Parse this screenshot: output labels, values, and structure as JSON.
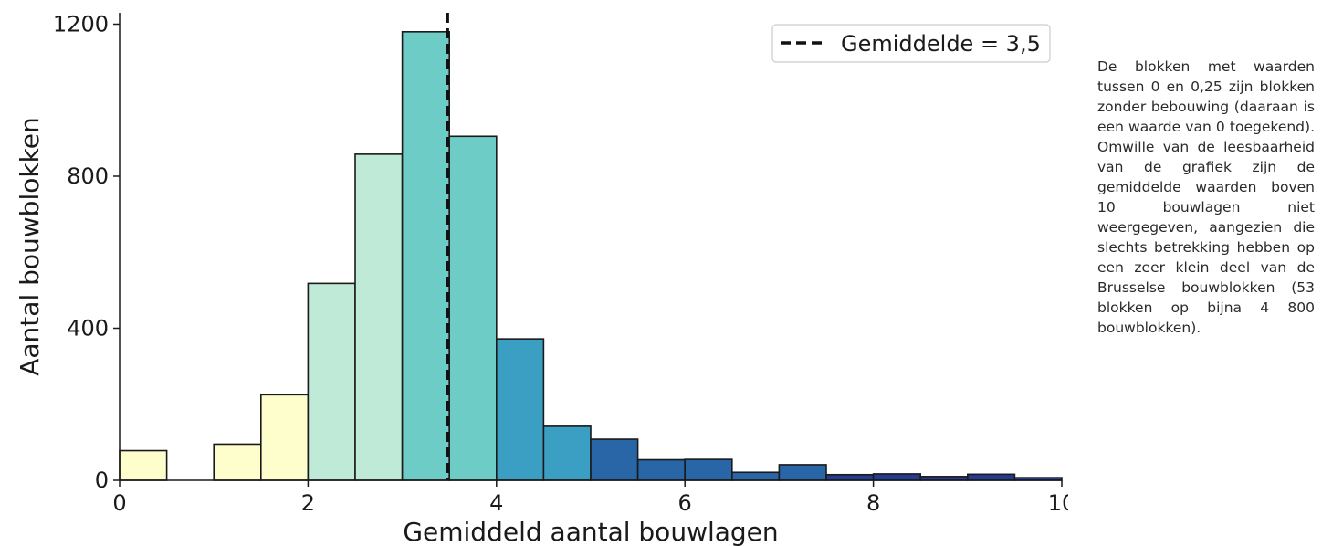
{
  "chart_data": {
    "type": "bar",
    "title": "",
    "xlabel": "Gemiddeld aantal bouwlagen",
    "ylabel": "Aantal bouwblokken",
    "xlim": [
      0,
      10
    ],
    "ylim": [
      0,
      1230
    ],
    "x_ticks": [
      "0",
      "2",
      "4",
      "6",
      "8",
      "10"
    ],
    "y_ticks": [
      "0",
      "400",
      "800",
      "1200"
    ],
    "bin_width": 0.5,
    "bins": [
      {
        "x0": 0.0,
        "x1": 0.5,
        "value": 78,
        "color": "#fefecc"
      },
      {
        "x0": 0.5,
        "x1": 1.0,
        "value": 0,
        "color": "#fefecc"
      },
      {
        "x0": 1.0,
        "x1": 1.5,
        "value": 95,
        "color": "#fefecc"
      },
      {
        "x0": 1.5,
        "x1": 2.0,
        "value": 225,
        "color": "#fefecc"
      },
      {
        "x0": 2.0,
        "x1": 2.5,
        "value": 518,
        "color": "#bfead8"
      },
      {
        "x0": 2.5,
        "x1": 3.0,
        "value": 858,
        "color": "#bfead8"
      },
      {
        "x0": 3.0,
        "x1": 3.5,
        "value": 1180,
        "color": "#6dcdc6"
      },
      {
        "x0": 3.5,
        "x1": 4.0,
        "value": 905,
        "color": "#6dcdc6"
      },
      {
        "x0": 4.0,
        "x1": 4.5,
        "value": 372,
        "color": "#3a9fc2"
      },
      {
        "x0": 4.5,
        "x1": 5.0,
        "value": 142,
        "color": "#3a9fc2"
      },
      {
        "x0": 5.0,
        "x1": 5.5,
        "value": 108,
        "color": "#2966a8"
      },
      {
        "x0": 5.5,
        "x1": 6.0,
        "value": 54,
        "color": "#2966a8"
      },
      {
        "x0": 6.0,
        "x1": 6.5,
        "value": 55,
        "color": "#2966a8"
      },
      {
        "x0": 6.5,
        "x1": 7.0,
        "value": 21,
        "color": "#2966a8"
      },
      {
        "x0": 7.0,
        "x1": 7.5,
        "value": 41,
        "color": "#2966a8"
      },
      {
        "x0": 7.5,
        "x1": 8.0,
        "value": 15,
        "color": "#253a91"
      },
      {
        "x0": 8.0,
        "x1": 8.5,
        "value": 17,
        "color": "#253a91"
      },
      {
        "x0": 8.5,
        "x1": 9.0,
        "value": 10,
        "color": "#253a91"
      },
      {
        "x0": 9.0,
        "x1": 9.5,
        "value": 16,
        "color": "#253a91"
      },
      {
        "x0": 9.5,
        "x1": 10.0,
        "value": 7,
        "color": "#253a91"
      }
    ],
    "mean_line": {
      "x": 3.48,
      "label": "Gemiddelde = 3,5"
    },
    "legend": {
      "position": "top-right",
      "entries": [
        "Gemiddelde = 3,5"
      ]
    },
    "grid": false
  },
  "note": {
    "text": "De blokken met waarden tussen 0 en 0,25 zijn blokken zonder bebouwing (daaraan is een waarde van 0 toegekend). Omwille van de leesbaarheid van de grafiek zijn de gemiddelde waarden boven 10 bouwlagen niet weergegeven, aangezien die slechts betrekking hebben op een zeer klein deel van de Brusselse bouwblokken (53 blokken op bijna 4 800 bouwblokken)."
  },
  "colors": {
    "axis": "#1a1a1a",
    "bar_edge": "#1a1a1a",
    "mean_line": "#111111"
  }
}
